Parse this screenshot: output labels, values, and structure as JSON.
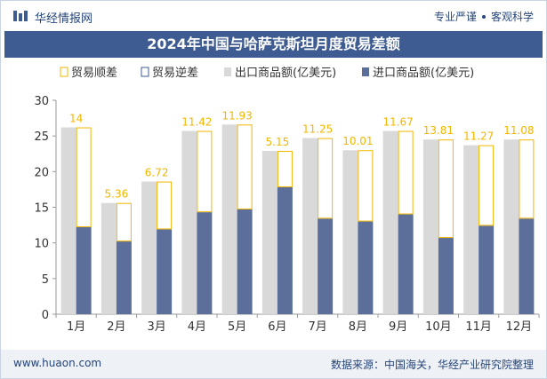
{
  "header": {
    "brand": "华经情报网",
    "tag1": "专业严谨",
    "tag2": "客观科学"
  },
  "footer": {
    "website": "www.huaon.com",
    "source": "数据来源：中国海关，华经产业研究院整理"
  },
  "chart_data": {
    "type": "bar",
    "title": "2024年中国与哈萨克斯坦月度贸易差额",
    "legend": [
      "贸易顺差",
      "贸易逆差",
      "出口商品额(亿美元)",
      "进口商品额(亿美元)"
    ],
    "categories": [
      "1月",
      "2月",
      "3月",
      "4月",
      "5月",
      "6月",
      "7月",
      "8月",
      "9月",
      "10月",
      "11月",
      "12月"
    ],
    "series": [
      {
        "name": "出口商品额(亿美元)",
        "values": [
          26.2,
          15.6,
          18.6,
          25.7,
          26.6,
          22.9,
          24.7,
          23.0,
          25.7,
          24.5,
          23.7,
          24.5
        ]
      },
      {
        "name": "进口商品额(亿美元)",
        "values": [
          12.2,
          10.2,
          11.9,
          14.3,
          14.7,
          17.8,
          13.4,
          13.0,
          14.0,
          10.7,
          12.4,
          13.4
        ]
      }
    ],
    "balance_labels": [
      "14",
      "5.36",
      "6.72",
      "11.42",
      "11.93",
      "5.15",
      "11.25",
      "10.01",
      "11.67",
      "13.81",
      "11.27",
      "11.08"
    ],
    "y_ticks": [
      "0",
      "5",
      "10",
      "15",
      "20",
      "25",
      "30"
    ],
    "ylim": [
      0,
      30
    ],
    "grid": false,
    "legend_position": "top",
    "colors": {
      "export": "#d9d9d9",
      "import": "#5b6f9a",
      "surplus": "#f2b600",
      "deficit": "#3e5b92",
      "title_bg": "#3e5b92"
    }
  }
}
